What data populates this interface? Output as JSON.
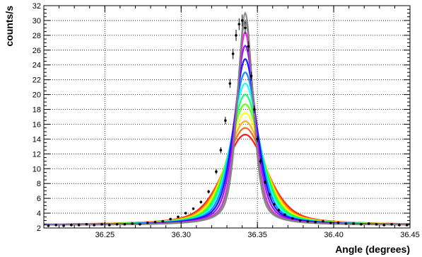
{
  "chart_data": {
    "type": "line",
    "title": "",
    "xlabel": "Angle (degrees)",
    "ylabel": "counts/s",
    "xlim": [
      36.21,
      36.45
    ],
    "ylim": [
      2,
      32
    ],
    "x_ticks": [
      36.25,
      36.3,
      36.35,
      36.4,
      36.45
    ],
    "x_tick_labels": [
      "36.25",
      "36.30",
      "36.35",
      "36.40",
      "36.45"
    ],
    "y_ticks": [
      2,
      4,
      6,
      8,
      10,
      12,
      14,
      16,
      18,
      20,
      22,
      24,
      26,
      28,
      30,
      32
    ],
    "y_tick_labels": [
      "2",
      "4",
      "6",
      "8",
      "10",
      "12",
      "14",
      "16",
      "18",
      "20",
      "22",
      "24",
      "26",
      "28",
      "30",
      "32"
    ],
    "grid": true,
    "legend": "none",
    "peak_center": 36.342,
    "baseline": 2.4,
    "fit_family": {
      "description_colors": [
        "#ff0000",
        "#ff7f00",
        "#ffff00",
        "#00ff00",
        "#00ffff",
        "#0000ff",
        "#8b00ff",
        "#ff00ff",
        "#808080"
      ],
      "peak_heights": [
        14.6,
        15.5,
        16.4,
        17.5,
        18.7,
        20.0,
        21.5,
        23.0,
        24.8,
        26.6,
        28.4,
        30.0,
        31.0
      ],
      "fwhm": [
        0.034,
        0.032,
        0.03,
        0.028,
        0.026,
        0.024,
        0.022,
        0.02,
        0.018,
        0.016,
        0.014,
        0.013,
        0.012
      ]
    },
    "data_points": {
      "x": [
        36.213,
        36.218,
        36.223,
        36.228,
        36.233,
        36.238,
        36.243,
        36.248,
        36.253,
        36.258,
        36.263,
        36.268,
        36.273,
        36.278,
        36.283,
        36.288,
        36.293,
        36.298,
        36.303,
        36.308,
        36.313,
        36.318,
        36.323,
        36.326,
        36.329,
        36.332,
        36.334,
        36.336,
        36.338,
        36.34,
        36.342,
        36.344,
        36.346,
        36.348,
        36.35,
        36.352,
        36.355,
        36.358,
        36.361,
        36.364,
        36.368,
        36.373,
        36.378,
        36.383,
        36.388,
        36.393,
        36.398,
        36.403,
        36.408,
        36.413,
        36.418,
        36.423,
        36.428,
        36.433,
        36.438,
        36.443,
        36.448
      ],
      "y": [
        2.3,
        2.4,
        2.3,
        2.4,
        2.4,
        2.5,
        2.4,
        2.5,
        2.4,
        2.5,
        2.5,
        2.6,
        2.5,
        2.7,
        2.8,
        2.9,
        3.2,
        3.5,
        4.0,
        4.6,
        5.5,
        6.9,
        9.6,
        12.5,
        16.5,
        21.5,
        25.5,
        28.0,
        29.5,
        30.0,
        29.0,
        26.5,
        22.5,
        18.0,
        14.0,
        11.0,
        8.2,
        6.5,
        5.2,
        4.4,
        3.8,
        3.3,
        3.0,
        2.9,
        2.8,
        2.9,
        2.7,
        2.7,
        2.6,
        2.6,
        2.5,
        2.6,
        2.5,
        2.4,
        2.5,
        2.4,
        2.4
      ],
      "yerr": [
        0.1,
        0.1,
        0.1,
        0.1,
        0.1,
        0.1,
        0.1,
        0.1,
        0.1,
        0.1,
        0.1,
        0.1,
        0.1,
        0.1,
        0.1,
        0.1,
        0.1,
        0.1,
        0.15,
        0.15,
        0.2,
        0.25,
        0.35,
        0.4,
        0.5,
        0.6,
        0.7,
        0.75,
        0.8,
        0.8,
        0.8,
        0.7,
        0.6,
        0.5,
        0.45,
        0.4,
        0.3,
        0.25,
        0.2,
        0.2,
        0.15,
        0.15,
        0.1,
        0.1,
        0.1,
        0.1,
        0.1,
        0.1,
        0.1,
        0.1,
        0.1,
        0.1,
        0.1,
        0.1,
        0.1,
        0.1,
        0.1
      ]
    }
  }
}
